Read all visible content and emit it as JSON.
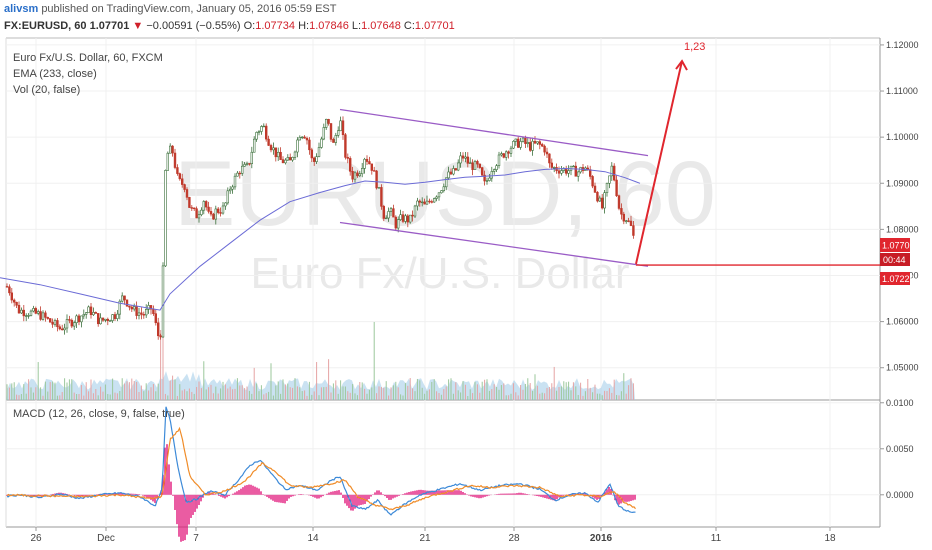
{
  "header": {
    "author": "alivsm",
    "published": "published on TradingView.com, January 05, 2016 05:59 EST",
    "symbol": "FX:EURUSD, 60",
    "last": "1.07701",
    "change": "−0.00591 (−0.55%)",
    "o_label": "O:",
    "o": "1.07734",
    "h_label": "H:",
    "h": "1.07846",
    "l_label": "L:",
    "l": "1.07648",
    "c_label": "C:",
    "c": "1.07701"
  },
  "legend": {
    "title": "Euro Fx/U.S. Dollar, 60, FXCM",
    "ema": "EMA (233, close)",
    "vol": "Vol (20, false)",
    "macd": "MACD (12, 26, close, 9, false, true)"
  },
  "watermark": {
    "symbol": "EURUSD, 60",
    "name": "Euro Fx/U.S. Dollar"
  },
  "annotation": {
    "label": "1,23"
  },
  "price_tags": {
    "last": "1.07701",
    "countdown": "00:44",
    "level": "1.07226"
  },
  "colors": {
    "up": "#3a6f3a",
    "down": "#c0392b",
    "ema": "#6b6bd6",
    "channel": "#9a5cc6",
    "target": "#e0262e",
    "macd": "#3d8ad8",
    "signal": "#f08c28",
    "hist": "#e0157a",
    "vol_area": "#9ecbe8"
  },
  "chart_data": [
    {
      "type": "candlestick",
      "title": "Euro Fx/U.S. Dollar, 60, FXCM",
      "x_ticks": [
        "26",
        "Dec",
        "7",
        "14",
        "21",
        "28",
        "2016",
        "11",
        "18"
      ],
      "ylim": [
        1.043,
        1.1215
      ],
      "y_ticks": [
        "1.12000",
        "1.11000",
        "1.10000",
        "1.09000",
        "1.08000",
        "1.07000",
        "1.06000",
        "1.05000"
      ],
      "price_path": [
        [
          0,
          1.068
        ],
        [
          8,
          1.0675
        ],
        [
          18,
          1.0625
        ],
        [
          40,
          1.0615
        ],
        [
          60,
          1.0585
        ],
        [
          75,
          1.0605
        ],
        [
          90,
          1.0625
        ],
        [
          100,
          1.06
        ],
        [
          115,
          1.0615
        ],
        [
          123,
          1.0655
        ],
        [
          133,
          1.0625
        ],
        [
          143,
          1.0615
        ],
        [
          152,
          1.063
        ],
        [
          158,
          1.057
        ],
        [
          162,
          1.058
        ],
        [
          164,
          1.084
        ],
        [
          166,
          1.096
        ],
        [
          172,
          1.0975
        ],
        [
          178,
          1.0905
        ],
        [
          185,
          1.0895
        ],
        [
          190,
          1.0845
        ],
        [
          197,
          1.083
        ],
        [
          204,
          1.0865
        ],
        [
          210,
          1.082
        ],
        [
          216,
          1.084
        ],
        [
          224,
          1.0845
        ],
        [
          230,
          1.089
        ],
        [
          240,
          1.093
        ],
        [
          248,
          1.0935
        ],
        [
          256,
          1.101
        ],
        [
          263,
          1.1025
        ],
        [
          270,
          1.0985
        ],
        [
          280,
          1.095
        ],
        [
          290,
          1.0945
        ],
        [
          300,
          1.101
        ],
        [
          306,
          1.1005
        ],
        [
          313,
          1.094
        ],
        [
          320,
          1.0985
        ],
        [
          327,
          1.104
        ],
        [
          333,
          1.098
        ],
        [
          340,
          1.104
        ],
        [
          345,
          1.0965
        ],
        [
          352,
          1.0915
        ],
        [
          360,
          1.093
        ],
        [
          365,
          1.096
        ],
        [
          372,
          1.0935
        ],
        [
          378,
          1.089
        ],
        [
          384,
          1.083
        ],
        [
          390,
          1.084
        ],
        [
          396,
          1.081
        ],
        [
          402,
          1.0825
        ],
        [
          410,
          1.082
        ],
        [
          418,
          1.086
        ],
        [
          425,
          1.085
        ],
        [
          433,
          1.087
        ],
        [
          440,
          1.0885
        ],
        [
          447,
          1.0915
        ],
        [
          455,
          1.0925
        ],
        [
          462,
          1.096
        ],
        [
          470,
          1.094
        ],
        [
          478,
          1.0935
        ],
        [
          485,
          1.0895
        ],
        [
          492,
          1.0935
        ],
        [
          500,
          1.0955
        ],
        [
          508,
          1.0975
        ],
        [
          515,
          1.0985
        ],
        [
          522,
          1.099
        ],
        [
          530,
          1.098
        ],
        [
          538,
          1.0985
        ],
        [
          545,
          1.0975
        ],
        [
          550,
          1.0935
        ],
        [
          560,
          1.093
        ],
        [
          570,
          1.0928
        ],
        [
          578,
          1.0925
        ],
        [
          585,
          1.0935
        ],
        [
          590,
          1.0915
        ],
        [
          596,
          1.088
        ],
        [
          602,
          1.0845
        ],
        [
          608,
          1.09
        ],
        [
          612,
          1.0935
        ],
        [
          616,
          1.089
        ],
        [
          620,
          1.0835
        ],
        [
          626,
          1.0825
        ],
        [
          631,
          1.0805
        ],
        [
          635,
          1.077
        ]
      ],
      "ema_path": [
        [
          0,
          1.0695
        ],
        [
          40,
          1.068
        ],
        [
          80,
          1.066
        ],
        [
          120,
          1.064
        ],
        [
          160,
          1.0625
        ],
        [
          170,
          1.066
        ],
        [
          200,
          1.072
        ],
        [
          230,
          1.077
        ],
        [
          260,
          1.082
        ],
        [
          290,
          1.086
        ],
        [
          320,
          1.088
        ],
        [
          345,
          1.0895
        ],
        [
          365,
          1.0905
        ],
        [
          385,
          1.0902
        ],
        [
          405,
          1.0898
        ],
        [
          425,
          1.0902
        ],
        [
          445,
          1.0908
        ],
        [
          465,
          1.0913
        ],
        [
          485,
          1.0915
        ],
        [
          505,
          1.0918
        ],
        [
          525,
          1.0925
        ],
        [
          545,
          1.093
        ],
        [
          565,
          1.0932
        ],
        [
          585,
          1.093
        ],
        [
          605,
          1.0925
        ],
        [
          625,
          1.0912
        ],
        [
          640,
          1.09
        ]
      ],
      "channel_upper": [
        [
          340,
          1.106
        ],
        [
          648,
          1.096
        ]
      ],
      "channel_lower": [
        [
          340,
          1.0815
        ],
        [
          648,
          1.072
        ]
      ],
      "target_arrow": [
        [
          636,
          1.0725
        ],
        [
          682,
          1.1165
        ]
      ],
      "level_line": 1.07226
    },
    {
      "type": "bar",
      "title": "Vol (20, false)"
    },
    {
      "type": "line",
      "title": "MACD (12, 26, close, 9, false, true)",
      "ylim": [
        -0.0035,
        0.0103
      ],
      "y_ticks": [
        "0.0100",
        "0.0050",
        "0.0000"
      ],
      "macd_path": [
        [
          0,
          -0.0002
        ],
        [
          20,
          0.0
        ],
        [
          40,
          -0.0003
        ],
        [
          60,
          0.0001
        ],
        [
          80,
          -0.0004
        ],
        [
          100,
          0.0
        ],
        [
          120,
          0.0002
        ],
        [
          140,
          -0.0002
        ],
        [
          155,
          -0.0012
        ],
        [
          162,
          0.0005
        ],
        [
          166,
          0.0095
        ],
        [
          170,
          0.0082
        ],
        [
          178,
          0.003
        ],
        [
          186,
          -0.0008
        ],
        [
          196,
          -0.0005
        ],
        [
          210,
          0.0004
        ],
        [
          225,
          0.0
        ],
        [
          240,
          0.0018
        ],
        [
          250,
          0.0032
        ],
        [
          260,
          0.0038
        ],
        [
          272,
          0.0022
        ],
        [
          285,
          0.0006
        ],
        [
          300,
          0.001
        ],
        [
          318,
          0.0005
        ],
        [
          330,
          0.0015
        ],
        [
          340,
          0.002
        ],
        [
          352,
          -0.0012
        ],
        [
          365,
          -0.0016
        ],
        [
          378,
          -0.0006
        ],
        [
          390,
          -0.0022
        ],
        [
          405,
          -0.001
        ],
        [
          420,
          0.0
        ],
        [
          440,
          0.0006
        ],
        [
          460,
          0.0012
        ],
        [
          480,
          0.0005
        ],
        [
          500,
          0.001
        ],
        [
          520,
          0.0012
        ],
        [
          540,
          0.0006
        ],
        [
          555,
          -0.0006
        ],
        [
          570,
          0.0
        ],
        [
          585,
          0.0002
        ],
        [
          598,
          -0.0008
        ],
        [
          610,
          0.0012
        ],
        [
          618,
          -0.0012
        ],
        [
          628,
          -0.0018
        ],
        [
          636,
          -0.002
        ]
      ],
      "signal_path": [
        [
          0,
          0.0
        ],
        [
          40,
          -0.0001
        ],
        [
          80,
          -0.0002
        ],
        [
          120,
          0.0
        ],
        [
          150,
          -0.0004
        ],
        [
          162,
          -0.0002
        ],
        [
          170,
          0.006
        ],
        [
          180,
          0.0072
        ],
        [
          190,
          0.002
        ],
        [
          205,
          0.0
        ],
        [
          225,
          0.0004
        ],
        [
          245,
          0.0015
        ],
        [
          262,
          0.0034
        ],
        [
          275,
          0.0026
        ],
        [
          290,
          0.001
        ],
        [
          310,
          0.0008
        ],
        [
          330,
          0.0012
        ],
        [
          345,
          0.0016
        ],
        [
          358,
          -0.0002
        ],
        [
          372,
          -0.001
        ],
        [
          392,
          -0.0016
        ],
        [
          410,
          -0.001
        ],
        [
          428,
          -0.0002
        ],
        [
          450,
          0.0004
        ],
        [
          470,
          0.001
        ],
        [
          490,
          0.0008
        ],
        [
          515,
          0.001
        ],
        [
          540,
          0.0008
        ],
        [
          560,
          -0.0002
        ],
        [
          580,
          0.0
        ],
        [
          600,
          -0.0002
        ],
        [
          614,
          0.0004
        ],
        [
          624,
          -0.0008
        ],
        [
          636,
          -0.0015
        ]
      ]
    }
  ]
}
